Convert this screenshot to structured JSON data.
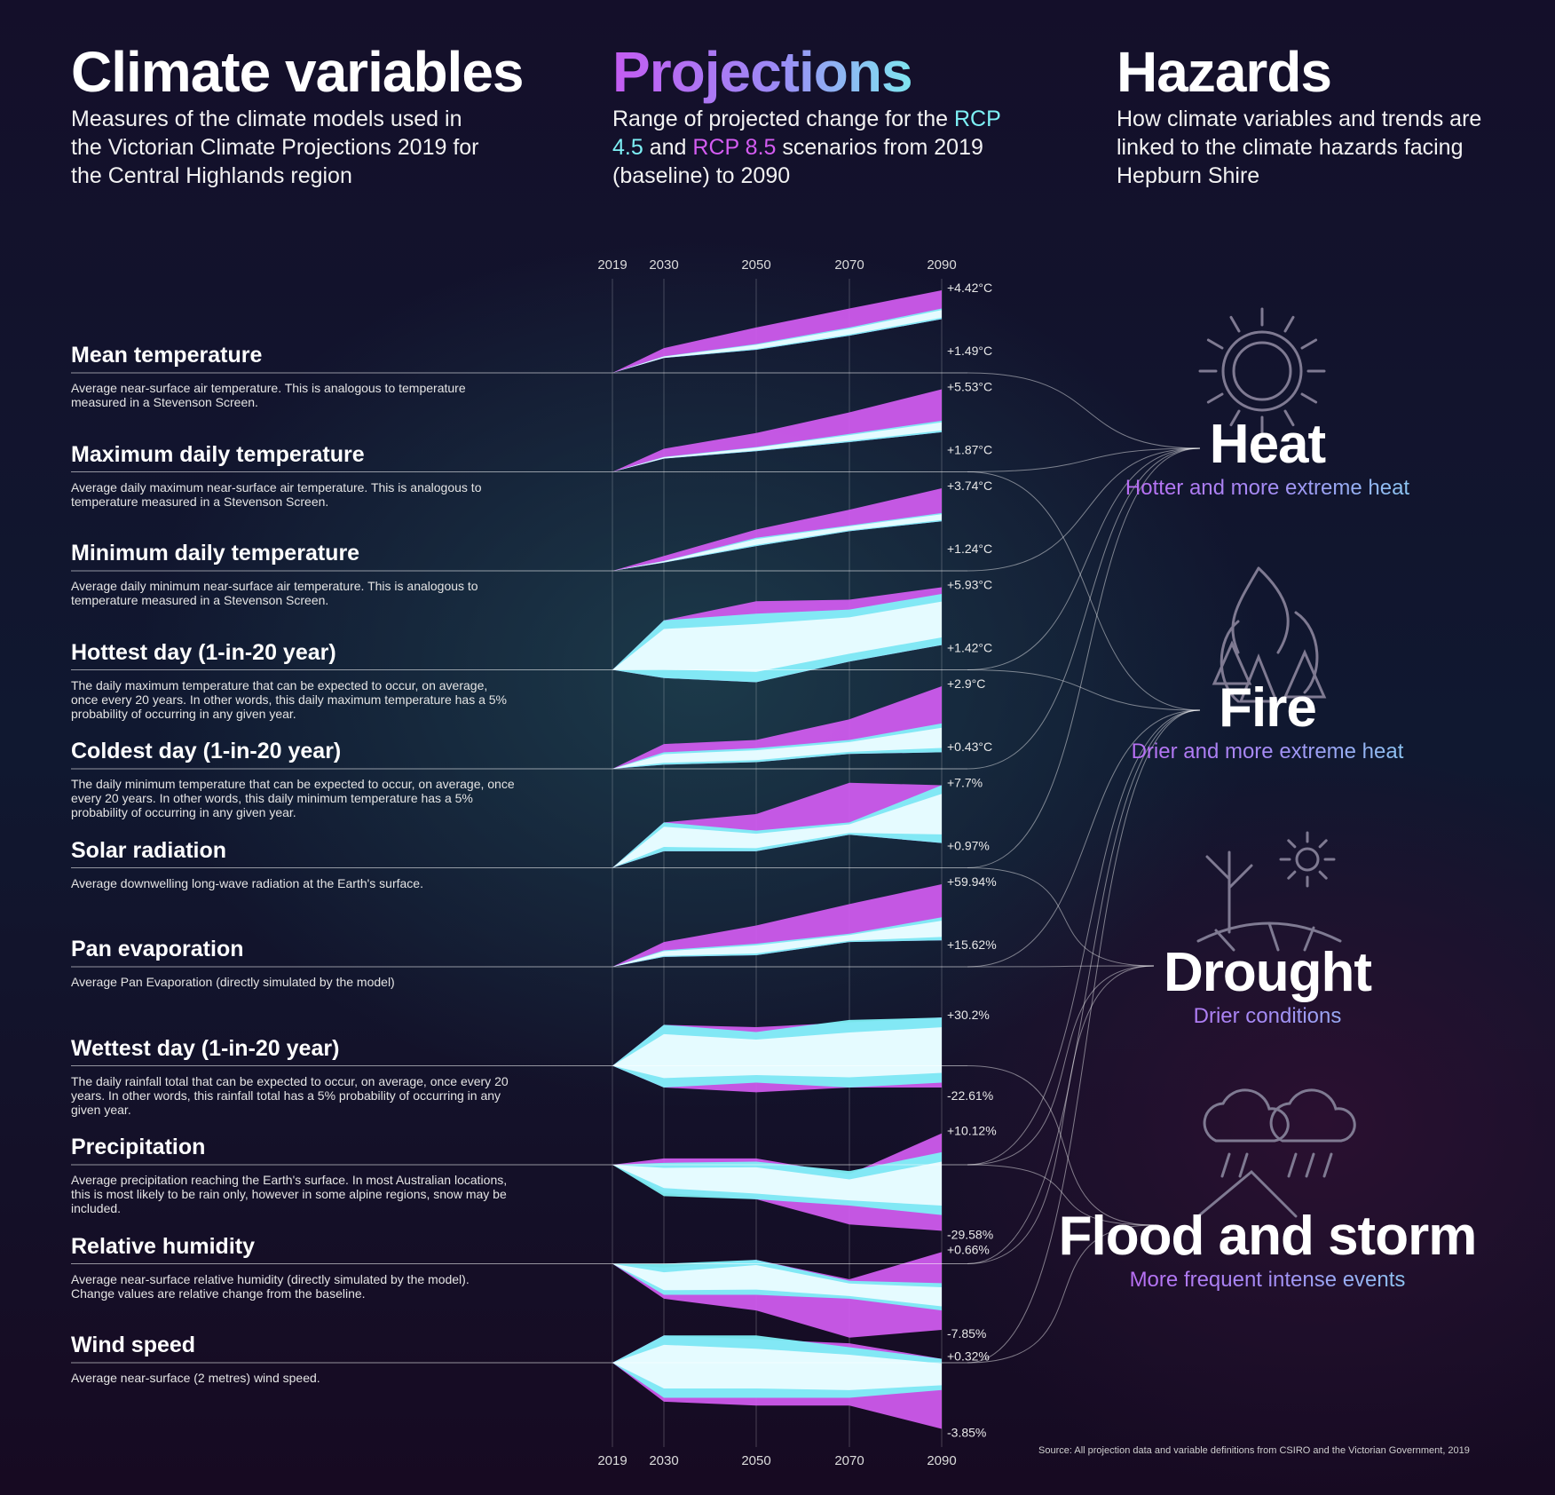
{
  "header": {
    "left": {
      "title": "Climate variables",
      "subtitle": "Measures of the climate models used in the Victorian Climate Projections 2019 for the Central Highlands region"
    },
    "middle": {
      "title": "Projections",
      "subtitle_pre": "Range of projected change for the",
      "rcp45": "RCP 4.5",
      "and": "and",
      "rcp85": "RCP 8.5",
      "subtitle_post1": "scenarios",
      "subtitle_post2": "from 2019 (baseline) to 2090"
    },
    "right": {
      "title": "Hazards",
      "subtitle": "How climate variables and trends are linked to the climate hazards facing Hepburn Shire"
    }
  },
  "colors": {
    "rcp45": "#7ef0f5",
    "rcp85": "#d45cf2",
    "overlap": "#eafcff"
  },
  "chart_data": {
    "type": "area",
    "x": [
      "2019",
      "2030",
      "2050",
      "2070",
      "2090"
    ],
    "series_note": "",
    "variables": [
      {
        "name": "Mean temperature",
        "description": "Average near-surface air temperature. This is analogous to temperature measured in a Stevenson Screen.",
        "max_label": "+4.42°C",
        "min_label": "+1.49°C",
        "max": 4.42,
        "min": 1.49
      },
      {
        "name": "Maximum daily temperature",
        "description": "Average daily maximum near-surface air temperature. This is analogous to temperature measured in a Stevenson Screen.",
        "max_label": "+5.53°C",
        "min_label": "+1.87°C",
        "max": 5.53,
        "min": 1.87
      },
      {
        "name": "Minimum daily temperature",
        "description": "Average daily minimum near-surface air temperature. This is analogous to temperature measured in a Stevenson Screen.",
        "max_label": "+3.74°C",
        "min_label": "+1.24°C",
        "max": 3.74,
        "min": 1.24
      },
      {
        "name": "Hottest day (1-in-20 year)",
        "description": "The daily maximum temperature that can be expected to occur, on average, once every 20 years. In other words, this daily maximum temperature has a 5% probability of occurring in any given year.",
        "max_label": "+5.93°C",
        "min_label": "+1.42°C",
        "max": 5.93,
        "min": 1.42
      },
      {
        "name": "Coldest day (1-in-20 year)",
        "description": "The daily minimum temperature that can be expected to occur, on average, once every 20 years. In other words, this daily minimum temperature has a 5% probability of occurring in any given year.",
        "max_label": "+2.9°C",
        "min_label": "+0.43°C",
        "max": 2.9,
        "min": 0.43
      },
      {
        "name": "Solar radiation",
        "description": "Average downwelling long-wave radiation at the Earth's surface.",
        "max_label": "+7.7%",
        "min_label": "+0.97%",
        "max": 7.7,
        "min": 0.97
      },
      {
        "name": "Pan evaporation",
        "description": "Average Pan Evaporation (directly simulated by the model)",
        "max_label": "+59.94%",
        "min_label": "+15.62%",
        "max": 59.94,
        "min": 15.62
      },
      {
        "name": "Wettest day (1-in-20 year)",
        "description": "The daily rainfall total that can be expected to occur, on average, once every 20 years. In other words, this rainfall total has a 5% probability of occurring in any given year.",
        "max_label": "+30.2%",
        "min_label": "-22.61%",
        "max": 30.2,
        "min": -22.61
      },
      {
        "name": "Precipitation",
        "description": "Average precipitation reaching the Earth's surface. In most Australian locations, this is most likely to be rain only, however in some alpine regions, snow may be included.",
        "max_label": "+10.12%",
        "min_label": "-29.58%",
        "max": 10.12,
        "min": -29.58
      },
      {
        "name": "Relative humidity",
        "description": "Average near-surface relative humidity (directly simulated by the model). Change values are relative change from the baseline.",
        "max_label": "+0.66%",
        "min_label": "-7.85%",
        "max": 0.66,
        "min": -7.85
      },
      {
        "name": "Wind speed",
        "description": "Average near-surface (2 metres) wind speed.",
        "max_label": "+0.32%",
        "min_label": "-3.85%",
        "max": 0.32,
        "min": -3.85
      }
    ]
  },
  "hazards": [
    {
      "name": "Heat",
      "subtitle": "Hotter and more extreme heat",
      "icon": "sun-icon"
    },
    {
      "name": "Fire",
      "subtitle": "Drier and more extreme heat",
      "icon": "fire-icon"
    },
    {
      "name": "Drought",
      "subtitle": "Drier conditions",
      "icon": "drought-icon"
    },
    {
      "name": "Flood and storm",
      "subtitle": "More frequent intense events",
      "icon": "storm-icon"
    }
  ],
  "source": "Source: All projection data and variable definitions from CSIRO and the Victorian Government, 2019"
}
